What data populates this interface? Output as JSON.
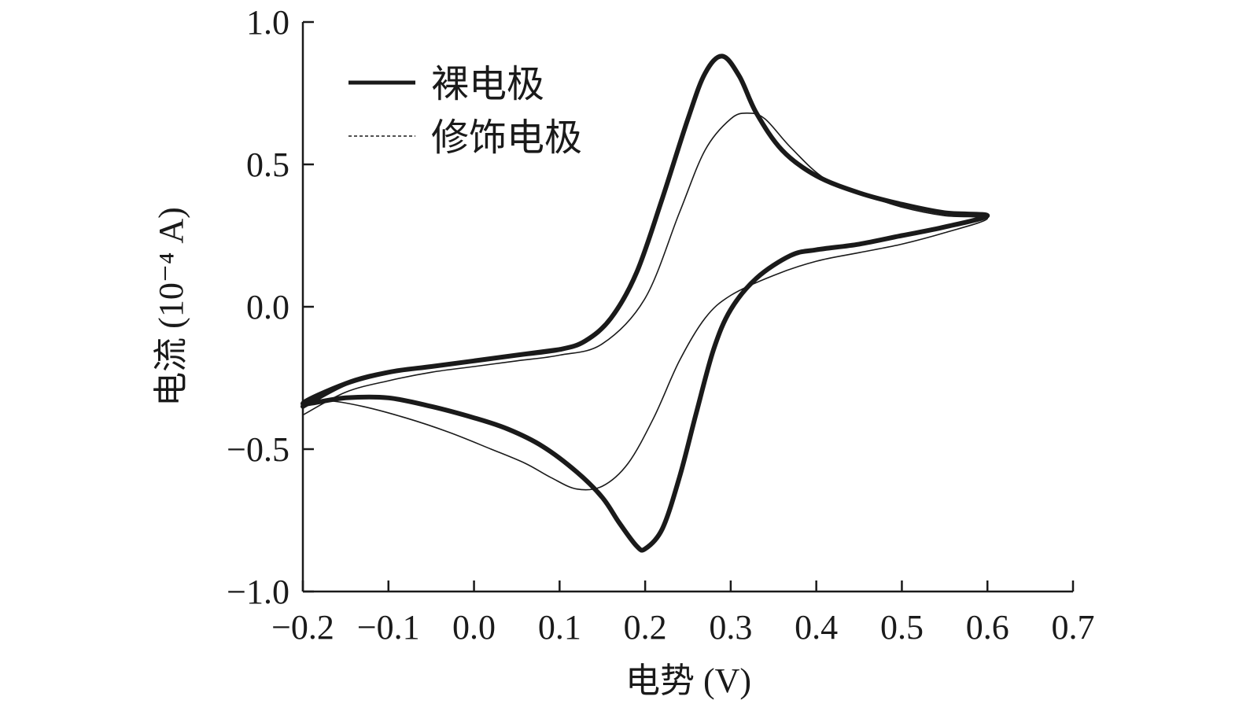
{
  "chart_data": {
    "type": "line",
    "title": "",
    "xlabel": "电势 (V)",
    "ylabel": "电流 (10⁻⁴ A)",
    "xlim": [
      -0.2,
      0.7
    ],
    "ylim": [
      -1.0,
      1.0
    ],
    "xticks": [
      "−0.2",
      "−0.1",
      "0.0",
      "0.1",
      "0.2",
      "0.3",
      "0.4",
      "0.5",
      "0.6",
      "0.7"
    ],
    "yticks": [
      "−1.0",
      "−0.5",
      "0.0",
      "0.5",
      "1.0"
    ],
    "grid": false,
    "legend_position": "top-left",
    "series": [
      {
        "name": "裸电极",
        "style": "thick-solid",
        "color": "#1a1a1a",
        "x": [
          -0.2,
          -0.15,
          -0.1,
          -0.05,
          0.0,
          0.05,
          0.1,
          0.13,
          0.16,
          0.19,
          0.22,
          0.25,
          0.27,
          0.29,
          0.31,
          0.33,
          0.36,
          0.4,
          0.45,
          0.5,
          0.55,
          0.6,
          0.55,
          0.5,
          0.45,
          0.4,
          0.37,
          0.33,
          0.3,
          0.28,
          0.26,
          0.24,
          0.22,
          0.2,
          0.19,
          0.17,
          0.15,
          0.12,
          0.08,
          0.04,
          0.0,
          -0.05,
          -0.1,
          -0.15,
          -0.2,
          -0.15,
          -0.1,
          -0.05,
          0.0,
          0.05,
          0.1
        ],
        "y": [
          -0.35,
          -0.27,
          -0.23,
          -0.21,
          -0.19,
          -0.17,
          -0.15,
          -0.12,
          -0.04,
          0.12,
          0.38,
          0.66,
          0.82,
          0.88,
          0.81,
          0.68,
          0.55,
          0.46,
          0.4,
          0.36,
          0.33,
          0.32,
          0.28,
          0.25,
          0.22,
          0.2,
          0.18,
          0.1,
          -0.01,
          -0.15,
          -0.37,
          -0.6,
          -0.78,
          -0.85,
          -0.84,
          -0.76,
          -0.67,
          -0.58,
          -0.49,
          -0.43,
          -0.39,
          -0.35,
          -0.32,
          -0.32,
          -0.34,
          -0.27,
          -0.23,
          -0.21,
          -0.19,
          -0.17,
          -0.15
        ]
      },
      {
        "name": "修饰电极",
        "style": "thin-dotted",
        "color": "#1a1a1a",
        "x": [
          -0.2,
          -0.15,
          -0.1,
          -0.05,
          0.0,
          0.05,
          0.1,
          0.15,
          0.2,
          0.24,
          0.27,
          0.3,
          0.32,
          0.34,
          0.37,
          0.41,
          0.46,
          0.5,
          0.55,
          0.6,
          0.55,
          0.5,
          0.45,
          0.4,
          0.35,
          0.3,
          0.27,
          0.24,
          0.21,
          0.18,
          0.15,
          0.12,
          0.09,
          0.06,
          0.02,
          -0.03,
          -0.08,
          -0.13,
          -0.17,
          -0.2
        ],
        "y": [
          -0.38,
          -0.3,
          -0.26,
          -0.23,
          -0.21,
          -0.19,
          -0.17,
          -0.13,
          0.03,
          0.33,
          0.55,
          0.66,
          0.68,
          0.66,
          0.56,
          0.45,
          0.39,
          0.35,
          0.32,
          0.31,
          0.26,
          0.22,
          0.19,
          0.16,
          0.11,
          0.04,
          -0.04,
          -0.19,
          -0.39,
          -0.55,
          -0.63,
          -0.64,
          -0.6,
          -0.55,
          -0.5,
          -0.44,
          -0.39,
          -0.35,
          -0.33,
          -0.34
        ]
      }
    ]
  }
}
